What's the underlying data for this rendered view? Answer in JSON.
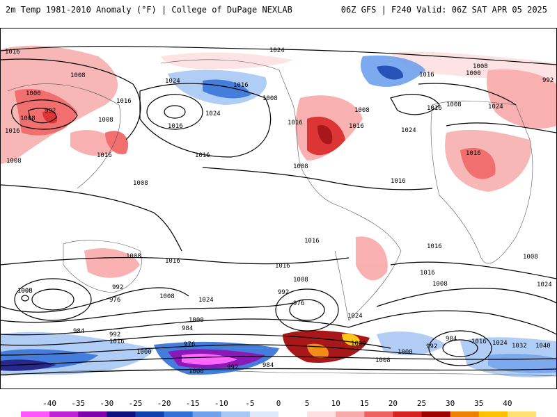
{
  "header": {
    "title": "2m Temp 1981-2010 Anomaly (°F) | College of DuPage NEXLAB",
    "run_info": "06Z GFS | F240 Valid: 06Z SAT APR 05 2025"
  },
  "legend": {
    "ticks": [
      "-40",
      "-35",
      "-30",
      "-25",
      "-20",
      "-15",
      "-10",
      "-5",
      "0",
      "5",
      "10",
      "15",
      "20",
      "25",
      "30",
      "35",
      "40"
    ],
    "colors": [
      "#ff55ff",
      "#c020d8",
      "#8000b0",
      "#101080",
      "#1040b0",
      "#3070d8",
      "#70a0ee",
      "#a8c8f5",
      "#dde8fb",
      "#ffffff",
      "#fde0e0",
      "#f8a8a8",
      "#f06060",
      "#d82020",
      "#a00000",
      "#f08000",
      "#ffc000",
      "#ffe070"
    ]
  },
  "isobars": [
    {
      "label": "1016"
    },
    {
      "label": "1024"
    },
    {
      "label": "1008"
    },
    {
      "label": "1000"
    },
    {
      "label": "992"
    },
    {
      "label": "1016"
    },
    {
      "label": "1008"
    },
    {
      "label": "1016"
    },
    {
      "label": "1024"
    },
    {
      "label": "1016"
    },
    {
      "label": "1024"
    },
    {
      "label": "1016"
    },
    {
      "label": "1008"
    },
    {
      "label": "1016"
    },
    {
      "label": "1008"
    },
    {
      "label": "1016"
    },
    {
      "label": "1008"
    },
    {
      "label": "1024"
    },
    {
      "label": "1008"
    },
    {
      "label": "1016"
    },
    {
      "label": "1000"
    },
    {
      "label": "1016"
    },
    {
      "label": "992"
    },
    {
      "label": "1008"
    },
    {
      "label": "1024"
    },
    {
      "label": "1008"
    },
    {
      "label": "1016"
    },
    {
      "label": "1008"
    },
    {
      "label": "1016"
    },
    {
      "label": "1016"
    },
    {
      "label": "1016"
    },
    {
      "label": "1016"
    },
    {
      "label": "1016"
    },
    {
      "label": "1008"
    },
    {
      "label": "1008"
    },
    {
      "label": "1016"
    },
    {
      "label": "1008"
    },
    {
      "label": "1024"
    },
    {
      "label": "1008"
    },
    {
      "label": "1016"
    },
    {
      "label": "992"
    },
    {
      "label": "976"
    },
    {
      "label": "1000"
    },
    {
      "label": "984"
    },
    {
      "label": "992"
    },
    {
      "label": "1016"
    },
    {
      "label": "984"
    },
    {
      "label": "976"
    },
    {
      "label": "1000"
    },
    {
      "label": "1000"
    },
    {
      "label": "992"
    },
    {
      "label": "984"
    },
    {
      "label": "1008"
    },
    {
      "label": "1008"
    },
    {
      "label": "1024"
    },
    {
      "label": "1008"
    },
    {
      "label": "992"
    },
    {
      "label": "976"
    },
    {
      "label": "1024"
    },
    {
      "label": "1016"
    },
    {
      "label": "1000"
    },
    {
      "label": "1008"
    },
    {
      "label": "1000"
    },
    {
      "label": "992"
    },
    {
      "label": "984"
    },
    {
      "label": "1016"
    },
    {
      "label": "1024"
    },
    {
      "label": "1032"
    },
    {
      "label": "1040"
    },
    {
      "label": "1008"
    }
  ]
}
